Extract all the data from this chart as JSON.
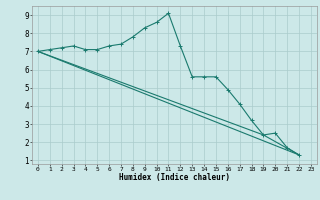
{
  "background_color": "#cce8e8",
  "grid_color": "#aacccc",
  "line_color": "#1a7a6e",
  "xlabel": "Humidex (Indice chaleur)",
  "ylim": [
    0.8,
    9.5
  ],
  "xlim": [
    -0.5,
    23.5
  ],
  "yticks": [
    1,
    2,
    3,
    4,
    5,
    6,
    7,
    8,
    9
  ],
  "xticks": [
    0,
    1,
    2,
    3,
    4,
    5,
    6,
    7,
    8,
    9,
    10,
    11,
    12,
    13,
    14,
    15,
    16,
    17,
    18,
    19,
    20,
    21,
    22,
    23
  ],
  "line1_x": [
    0,
    1,
    2,
    3,
    4,
    5,
    6,
    7,
    8,
    9,
    10,
    11,
    12,
    13,
    14,
    15,
    16,
    17,
    18,
    19,
    20,
    21,
    22
  ],
  "line1_y": [
    7.0,
    7.1,
    7.2,
    7.3,
    7.1,
    7.1,
    7.3,
    7.4,
    7.8,
    8.3,
    8.6,
    9.1,
    7.3,
    5.6,
    5.6,
    5.6,
    4.9,
    4.1,
    3.2,
    2.4,
    2.5,
    1.7,
    1.3
  ],
  "line2_x": [
    0,
    22
  ],
  "line2_y": [
    7.0,
    1.3
  ],
  "line3_x": [
    0,
    19,
    22
  ],
  "line3_y": [
    7.0,
    2.4,
    1.3
  ],
  "xtick_labels": [
    "0",
    "1",
    "2",
    "3",
    "4",
    "5",
    "6",
    "7",
    "8",
    "9",
    "10",
    "11",
    "12",
    "13",
    "14",
    "15",
    "16",
    "17",
    "18",
    "19",
    "20",
    "21",
    "22",
    "23"
  ],
  "ytick_labels": [
    "1",
    "2",
    "3",
    "4",
    "5",
    "6",
    "7",
    "8",
    "9"
  ]
}
